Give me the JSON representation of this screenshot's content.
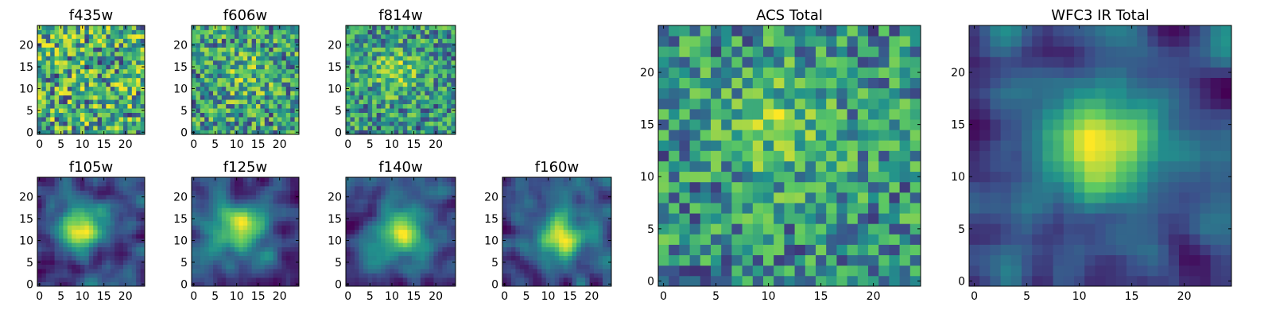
{
  "figure": {
    "colormap": [
      "#440154",
      "#3b528b",
      "#21918c",
      "#5ec962",
      "#fde725"
    ]
  },
  "chart_data": [
    {
      "type": "heatmap",
      "title": "f435w",
      "grid": false,
      "rows": 25,
      "cols": 25,
      "xlim": [
        0,
        24
      ],
      "ylim": [
        0,
        24
      ],
      "xticks": [
        0,
        5,
        10,
        15,
        20
      ],
      "yticks": [
        0,
        5,
        10,
        15,
        20
      ],
      "xtick_labels": [
        "0",
        "5",
        "10",
        "15",
        "20"
      ],
      "ytick_labels": [
        "0",
        "5",
        "10",
        "15",
        "20"
      ],
      "pattern": "uniform noise",
      "peak": [
        12,
        12
      ],
      "seed": 11
    },
    {
      "type": "heatmap",
      "title": "f606w",
      "grid": false,
      "rows": 25,
      "cols": 25,
      "xlim": [
        0,
        24
      ],
      "ylim": [
        0,
        24
      ],
      "xticks": [
        0,
        5,
        10,
        15,
        20
      ],
      "yticks": [
        0,
        5,
        10,
        15,
        20
      ],
      "xtick_labels": [
        "0",
        "5",
        "10",
        "15",
        "20"
      ],
      "ytick_labels": [
        "0",
        "5",
        "10",
        "15",
        "20"
      ],
      "pattern": "noise with faint central source",
      "peak": [
        12,
        13
      ],
      "seed": 23
    },
    {
      "type": "heatmap",
      "title": "f814w",
      "grid": false,
      "rows": 25,
      "cols": 25,
      "xlim": [
        0,
        24
      ],
      "ylim": [
        0,
        24
      ],
      "xticks": [
        0,
        5,
        10,
        15,
        20
      ],
      "yticks": [
        0,
        5,
        10,
        15,
        20
      ],
      "xtick_labels": [
        "0",
        "5",
        "10",
        "15",
        "20"
      ],
      "ytick_labels": [
        "0",
        "5",
        "10",
        "15",
        "20"
      ],
      "pattern": "noise with central source",
      "peak": [
        11,
        14
      ],
      "seed": 37
    },
    {
      "type": "heatmap",
      "title": "f105w",
      "grid": false,
      "rows": 25,
      "cols": 25,
      "xlim": [
        0,
        24
      ],
      "ylim": [
        0,
        24
      ],
      "xticks": [
        0,
        5,
        10,
        15,
        20
      ],
      "yticks": [
        0,
        5,
        10,
        15,
        20
      ],
      "xtick_labels": [
        "0",
        "5",
        "10",
        "15",
        "20"
      ],
      "ytick_labels": [
        "0",
        "5",
        "10",
        "15",
        "20"
      ],
      "pattern": "smooth extended source",
      "peak": [
        10,
        13
      ],
      "seed": 41
    },
    {
      "type": "heatmap",
      "title": "f125w",
      "grid": false,
      "rows": 25,
      "cols": 25,
      "xlim": [
        0,
        24
      ],
      "ylim": [
        0,
        24
      ],
      "xticks": [
        0,
        5,
        10,
        15,
        20
      ],
      "yticks": [
        0,
        5,
        10,
        15,
        20
      ],
      "xtick_labels": [
        "0",
        "5",
        "10",
        "15",
        "20"
      ],
      "ytick_labels": [
        "0",
        "5",
        "10",
        "15",
        "20"
      ],
      "pattern": "smooth extended source",
      "peak": [
        11,
        13
      ],
      "seed": 53
    },
    {
      "type": "heatmap",
      "title": "f140w",
      "grid": false,
      "rows": 25,
      "cols": 25,
      "xlim": [
        0,
        24
      ],
      "ylim": [
        0,
        24
      ],
      "xticks": [
        0,
        5,
        10,
        15,
        20
      ],
      "yticks": [
        0,
        5,
        10,
        15,
        20
      ],
      "xtick_labels": [
        "0",
        "5",
        "10",
        "15",
        "20"
      ],
      "ytick_labels": [
        "0",
        "5",
        "10",
        "15",
        "20"
      ],
      "pattern": "smooth extended source",
      "peak": [
        12,
        12
      ],
      "seed": 67
    },
    {
      "type": "heatmap",
      "title": "f160w",
      "grid": false,
      "rows": 25,
      "cols": 25,
      "xlim": [
        0,
        24
      ],
      "ylim": [
        0,
        24
      ],
      "xticks": [
        0,
        5,
        10,
        15,
        20
      ],
      "yticks": [
        0,
        5,
        10,
        15,
        20
      ],
      "xtick_labels": [
        "0",
        "5",
        "10",
        "15",
        "20"
      ],
      "ytick_labels": [
        "0",
        "5",
        "10",
        "15",
        "20"
      ],
      "pattern": "smooth extended source",
      "peak": [
        13,
        11
      ],
      "seed": 79
    },
    {
      "type": "heatmap",
      "title": "ACS Total",
      "grid": false,
      "rows": 25,
      "cols": 25,
      "xlim": [
        0,
        24
      ],
      "ylim": [
        0,
        24
      ],
      "xticks": [
        0,
        5,
        10,
        15,
        20
      ],
      "yticks": [
        0,
        5,
        10,
        15,
        20
      ],
      "xtick_labels": [
        "0",
        "5",
        "10",
        "15",
        "20"
      ],
      "ytick_labels": [
        "0",
        "5",
        "10",
        "15",
        "20"
      ],
      "pattern": "noise with central source",
      "peak": [
        11,
        15
      ],
      "seed": 97
    },
    {
      "type": "heatmap",
      "title": "WFC3 IR Total",
      "grid": false,
      "rows": 25,
      "cols": 25,
      "xlim": [
        0,
        24
      ],
      "ylim": [
        0,
        24
      ],
      "xticks": [
        0,
        5,
        10,
        15,
        20
      ],
      "yticks": [
        0,
        5,
        10,
        15,
        20
      ],
      "xtick_labels": [
        "0",
        "5",
        "10",
        "15",
        "20"
      ],
      "ytick_labels": [
        "0",
        "5",
        "10",
        "15",
        "20"
      ],
      "pattern": "smooth extended source",
      "peak": [
        12,
        13
      ],
      "seed": 113
    }
  ]
}
